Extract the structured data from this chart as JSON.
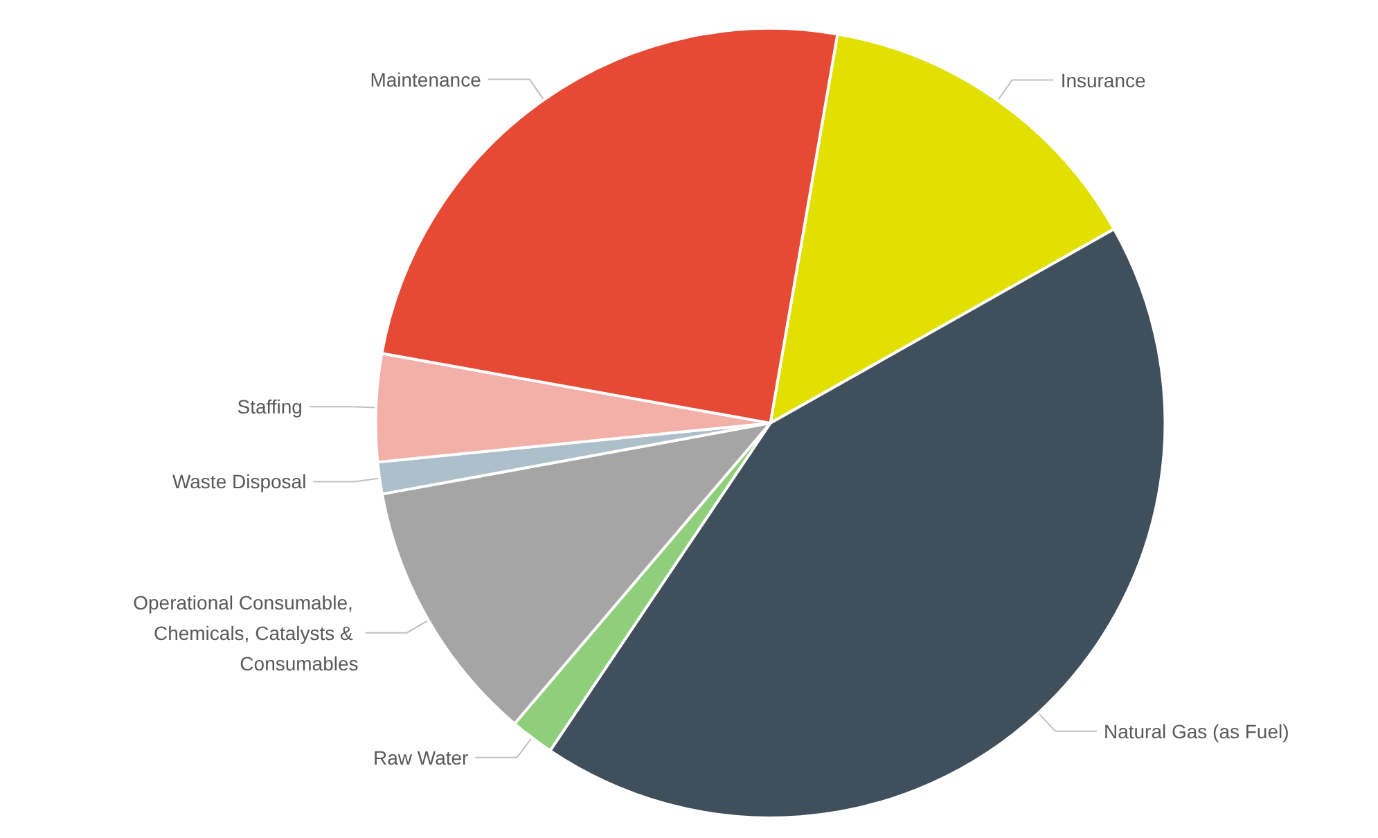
{
  "chart_data": {
    "type": "pie",
    "categories": [
      "Insurance",
      "Natural Gas (as Fuel)",
      "Raw Water",
      "Operational Consumable, Chemicals, Catalysts & Consumables",
      "Waste Disposal",
      "Staffing",
      "Maintenance"
    ],
    "values": [
      14.1,
      42.6,
      1.8,
      10.9,
      1.3,
      4.4,
      24.9
    ],
    "colors": [
      "#e2e000",
      "#3f4f5c",
      "#8fce7a",
      "#a5a5a5",
      "#aebfcc",
      "#f2b0a8",
      "#e64a35"
    ],
    "legend": false
  }
}
